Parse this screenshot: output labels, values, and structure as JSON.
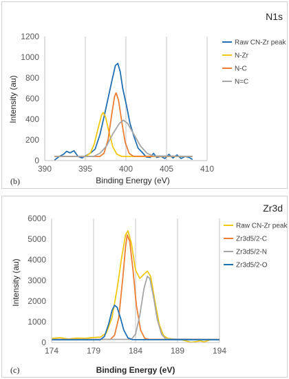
{
  "chart_data": [
    {
      "id": "b",
      "type": "line",
      "title": "N1s",
      "panel_label": "(b)",
      "xlabel": "Binding Energy (eV)",
      "ylabel": "Intensity (au)",
      "xlim": [
        390,
        410
      ],
      "ylim": [
        0,
        1200
      ],
      "xticks": [
        390,
        395,
        400,
        405,
        410
      ],
      "yticks": [
        0,
        200,
        400,
        600,
        800,
        1000,
        1200
      ],
      "grid": "vertical",
      "legend_position": "right",
      "series": [
        {
          "name": "Raw CN-Zr peak",
          "color": "#1f6fb5",
          "points": [
            [
              391.2,
              5
            ],
            [
              391.8,
              40
            ],
            [
              392.3,
              60
            ],
            [
              392.7,
              90
            ],
            [
              393.1,
              75
            ],
            [
              393.6,
              95
            ],
            [
              394.1,
              40
            ],
            [
              394.6,
              25
            ],
            [
              395.1,
              50
            ],
            [
              395.6,
              70
            ],
            [
              396.2,
              110
            ],
            [
              396.8,
              250
            ],
            [
              397.3,
              420
            ],
            [
              397.8,
              600
            ],
            [
              398.3,
              780
            ],
            [
              398.7,
              920
            ],
            [
              399.0,
              940
            ],
            [
              399.3,
              860
            ],
            [
              399.6,
              700
            ],
            [
              400.1,
              520
            ],
            [
              400.5,
              360
            ],
            [
              401.0,
              230
            ],
            [
              401.5,
              120
            ],
            [
              402.0,
              80
            ],
            [
              402.5,
              35
            ],
            [
              403.0,
              30
            ],
            [
              403.4,
              70
            ],
            [
              403.8,
              30
            ],
            [
              404.3,
              40
            ],
            [
              404.8,
              20
            ],
            [
              405.3,
              60
            ],
            [
              405.8,
              25
            ],
            [
              406.3,
              55
            ],
            [
              406.8,
              20
            ],
            [
              407.3,
              40
            ],
            [
              407.8,
              30
            ],
            [
              408.2,
              10
            ]
          ]
        },
        {
          "name": "N-Zr",
          "color": "#f2c80f",
          "points": [
            [
              391.2,
              40
            ],
            [
              395.0,
              40
            ],
            [
              395.6,
              70
            ],
            [
              396.1,
              160
            ],
            [
              396.6,
              320
            ],
            [
              397.0,
              440
            ],
            [
              397.2,
              465
            ],
            [
              397.5,
              420
            ],
            [
              397.9,
              280
            ],
            [
              398.4,
              130
            ],
            [
              398.9,
              60
            ],
            [
              399.5,
              40
            ],
            [
              408.2,
              40
            ]
          ]
        },
        {
          "name": "N-C",
          "color": "#ed7d31",
          "points": [
            [
              391.2,
              40
            ],
            [
              396.8,
              40
            ],
            [
              397.3,
              70
            ],
            [
              397.8,
              200
            ],
            [
              398.3,
              470
            ],
            [
              398.6,
              620
            ],
            [
              398.8,
              655
            ],
            [
              399.1,
              580
            ],
            [
              399.5,
              370
            ],
            [
              399.9,
              180
            ],
            [
              400.4,
              70
            ],
            [
              400.9,
              42
            ],
            [
              408.2,
              40
            ]
          ]
        },
        {
          "name": "N=C",
          "color": "#a5a5a5",
          "points": [
            [
              391.2,
              40
            ],
            [
              396.0,
              40
            ],
            [
              396.8,
              70
            ],
            [
              397.6,
              140
            ],
            [
              398.4,
              260
            ],
            [
              399.2,
              360
            ],
            [
              399.7,
              390
            ],
            [
              400.2,
              360
            ],
            [
              401.0,
              250
            ],
            [
              401.8,
              140
            ],
            [
              402.6,
              70
            ],
            [
              403.4,
              45
            ],
            [
              408.2,
              40
            ]
          ]
        }
      ]
    },
    {
      "id": "c",
      "type": "line",
      "title": "Zr3d",
      "panel_label": "(c)",
      "xlabel": "Binding Energy (eV)",
      "ylabel": "Intensity (au)",
      "xlim": [
        174,
        194
      ],
      "ylim": [
        0,
        6000
      ],
      "xticks": [
        174,
        179,
        184,
        189,
        194
      ],
      "yticks": [
        0,
        1000,
        2000,
        3000,
        4000,
        5000,
        6000
      ],
      "grid": "vertical",
      "legend_position": "right",
      "series": [
        {
          "name": "Raw CN-Zr peak",
          "color": "#f2c80f",
          "points": [
            [
              174.0,
              200
            ],
            [
              175.0,
              230
            ],
            [
              176.0,
              170
            ],
            [
              177.0,
              210
            ],
            [
              178.0,
              200
            ],
            [
              179.0,
              240
            ],
            [
              179.8,
              260
            ],
            [
              180.5,
              450
            ],
            [
              181.2,
              1200
            ],
            [
              181.8,
              2600
            ],
            [
              182.3,
              4000
            ],
            [
              182.8,
              5200
            ],
            [
              183.1,
              5400
            ],
            [
              183.5,
              4800
            ],
            [
              184.0,
              3500
            ],
            [
              184.5,
              3100
            ],
            [
              185.0,
              3300
            ],
            [
              185.4,
              3450
            ],
            [
              185.8,
              3200
            ],
            [
              186.3,
              2000
            ],
            [
              186.8,
              900
            ],
            [
              187.3,
              350
            ],
            [
              187.8,
              200
            ],
            [
              188.5,
              170
            ],
            [
              189.5,
              130
            ],
            [
              190.0,
              80
            ],
            [
              190.6,
              10
            ],
            [
              191.2,
              40
            ],
            [
              191.7,
              80
            ],
            [
              192.2,
              30
            ],
            [
              192.8,
              120
            ],
            [
              193.5,
              150
            ],
            [
              194.0,
              140
            ]
          ]
        },
        {
          "name": "Zr3d5/2-C",
          "color": "#ed7d31",
          "points": [
            [
              174.0,
              150
            ],
            [
              181.0,
              150
            ],
            [
              181.5,
              350
            ],
            [
              182.0,
              1200
            ],
            [
              182.5,
              3200
            ],
            [
              182.8,
              4600
            ],
            [
              183.0,
              5200
            ],
            [
              183.3,
              4900
            ],
            [
              183.7,
              3500
            ],
            [
              184.1,
              1800
            ],
            [
              184.6,
              600
            ],
            [
              185.1,
              200
            ],
            [
              185.6,
              150
            ],
            [
              194.0,
              150
            ]
          ]
        },
        {
          "name": "Zr3d5/2-N",
          "color": "#a5a5a5",
          "points": [
            [
              174.0,
              150
            ],
            [
              183.5,
              150
            ],
            [
              184.0,
              400
            ],
            [
              184.5,
              1300
            ],
            [
              185.0,
              2600
            ],
            [
              185.4,
              3200
            ],
            [
              185.7,
              3100
            ],
            [
              186.1,
              2300
            ],
            [
              186.6,
              1100
            ],
            [
              187.1,
              400
            ],
            [
              187.6,
              170
            ],
            [
              194.0,
              150
            ]
          ]
        },
        {
          "name": "Zr3d5/2-O",
          "color": "#1f6fb5",
          "points": [
            [
              174.0,
              130
            ],
            [
              179.8,
              130
            ],
            [
              180.3,
              300
            ],
            [
              180.8,
              900
            ],
            [
              181.2,
              1550
            ],
            [
              181.5,
              1800
            ],
            [
              181.8,
              1700
            ],
            [
              182.2,
              1200
            ],
            [
              182.6,
              600
            ],
            [
              183.1,
              220
            ],
            [
              183.6,
              140
            ],
            [
              194.0,
              130
            ]
          ]
        }
      ]
    }
  ]
}
